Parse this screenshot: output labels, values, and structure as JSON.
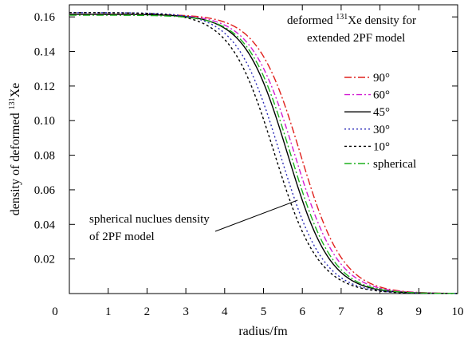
{
  "chart_data": {
    "type": "line",
    "xlabel": "radius/fm",
    "ylabel_prefix": "density of deformed ",
    "ylabel_sup": "131",
    "ylabel_suffix": "Xe",
    "xlim": [
      0,
      10
    ],
    "ylim": [
      0,
      0.167
    ],
    "x_ticks": [
      0,
      1,
      2,
      3,
      4,
      5,
      6,
      7,
      8,
      9,
      10
    ],
    "y_ticks": [
      0.02,
      0.04,
      0.06,
      0.08,
      0.1,
      0.12,
      0.14,
      0.16
    ],
    "y_tick_labels": [
      "0.02",
      "0.04",
      "0.06",
      "0.08",
      "0.10",
      "0.12",
      "0.14",
      "0.16"
    ],
    "grid": false,
    "legend_position": "right",
    "title_line1_prefix": "deformed ",
    "title_line1_sup": "131",
    "title_line1_suffix": "Xe density for",
    "title_line2": "extended 2PF model",
    "annotation_line1": "spherical nuclues density",
    "annotation_line2": "of 2PF model",
    "annotation_target": {
      "x": 5.88,
      "y": 0.054
    },
    "series": [
      {
        "name": "90°",
        "color": "#e0201c",
        "dash": "9,3,2,3",
        "rho0": 0.1615,
        "R": 5.95,
        "a": 0.55
      },
      {
        "name": "60°",
        "color": "#d21ed2",
        "dash": "7,3,2,3",
        "rho0": 0.1615,
        "R": 5.8,
        "a": 0.56
      },
      {
        "name": "45°",
        "color": "#000000",
        "dash": "",
        "rho0": 0.1615,
        "R": 5.62,
        "a": 0.55
      },
      {
        "name": "30°",
        "color": "#2b2bb8",
        "dash": "2,3",
        "rho0": 0.1625,
        "R": 5.42,
        "a": 0.56
      },
      {
        "name": "10°",
        "color": "#000000",
        "dash": "3,3",
        "rho0": 0.1625,
        "R": 5.28,
        "a": 0.57
      },
      {
        "name": "spherical",
        "color": "#1db11d",
        "dash": "9,3,2,3",
        "rho0": 0.161,
        "R": 5.7,
        "a": 0.55
      }
    ]
  }
}
